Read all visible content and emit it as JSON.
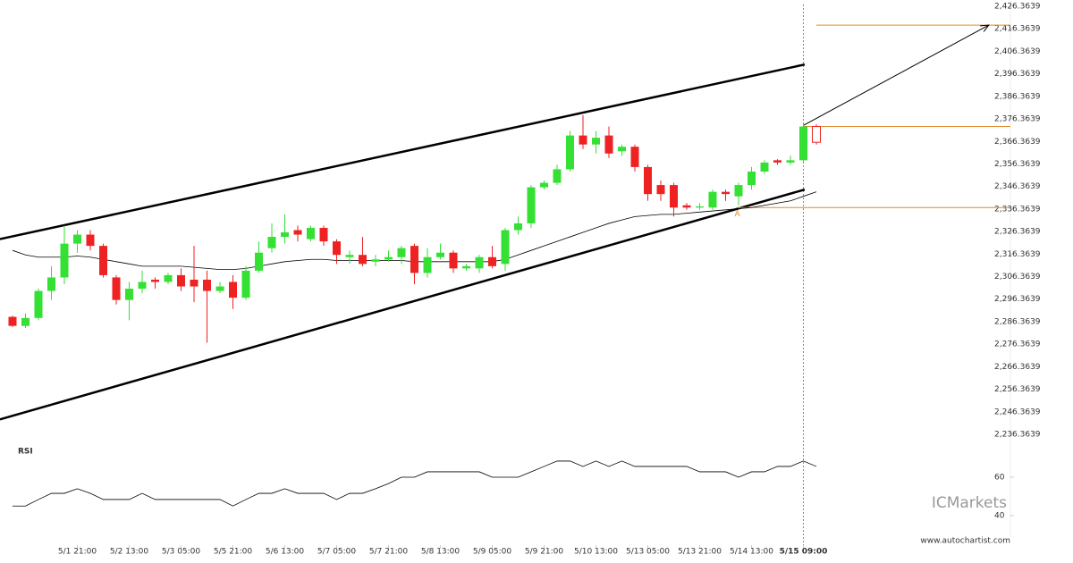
{
  "chart_data": {
    "type": "candlestick",
    "categories": [
      null,
      null,
      null,
      null,
      null,
      "5/1 21:00",
      null,
      null,
      null,
      "5/2 13:00",
      null,
      null,
      null,
      "5/3 05:00",
      null,
      null,
      null,
      "5/5 21:00",
      null,
      null,
      null,
      "5/6 13:00",
      null,
      null,
      null,
      "5/7 05:00",
      null,
      null,
      null,
      "5/7 21:00",
      null,
      null,
      null,
      "5/8 13:00",
      null,
      null,
      null,
      "5/9 05:00",
      null,
      null,
      null,
      "5/9 21:00",
      null,
      null,
      null,
      "5/10 13:00",
      null,
      null,
      null,
      "5/13 05:00",
      null,
      null,
      null,
      "5/13 21:00",
      null,
      null,
      null,
      "5/14 13:00",
      null,
      null,
      null,
      "5/15 09:00",
      null
    ],
    "open": [
      2288.5,
      2284.5,
      2288,
      2300,
      2306,
      2321,
      2325,
      2320,
      2306,
      2296,
      2301,
      2305,
      2304,
      2307,
      2305,
      2305,
      2300,
      2304,
      2297,
      2309,
      2319,
      2324,
      2327,
      2323,
      2328,
      2322,
      2315,
      2316,
      2313,
      2314,
      2315,
      2320,
      2308,
      2315,
      2317,
      2310,
      2310,
      2315,
      2312,
      2327,
      2330,
      2346,
      2348,
      2354,
      2369,
      2365,
      2369,
      2362,
      2364,
      2355,
      2347,
      2347,
      2338,
      2337,
      2337,
      2344,
      2342,
      2347,
      2353,
      2358,
      2357,
      2358,
      2373
    ],
    "high": [
      2289,
      2290,
      2301,
      2311,
      2329,
      2327,
      2327,
      2321,
      2307,
      2304,
      2309,
      2306,
      2308,
      2310,
      2320,
      2309,
      2304,
      2307,
      2311,
      2322,
      2330,
      2334,
      2329,
      2329,
      2329,
      2323,
      2318,
      2324,
      2316,
      2318,
      2320,
      2321,
      2319,
      2321,
      2318,
      2312,
      2316,
      2320,
      2328,
      2333,
      2347,
      2349,
      2356,
      2371,
      2378,
      2371,
      2373,
      2365,
      2365,
      2356,
      2349,
      2348,
      2339,
      2339,
      2345,
      2345,
      2348,
      2355,
      2358,
      2358.5,
      2360,
      2374,
      2374
    ],
    "low": [
      2284,
      2283.5,
      2287,
      2296,
      2303,
      2317,
      2318,
      2306,
      2294,
      2287,
      2299,
      2301,
      2303,
      2300,
      2295,
      2277,
      2299,
      2292,
      2296,
      2308,
      2317,
      2321,
      2322,
      2322,
      2320,
      2312,
      2312,
      2311,
      2311,
      2313,
      2312,
      2303,
      2306,
      2314,
      2308,
      2309,
      2308,
      2310,
      2309,
      2325,
      2328,
      2345,
      2347,
      2353,
      2363,
      2361,
      2359,
      2360,
      2353,
      2340,
      2340,
      2333,
      2336,
      2336,
      2336,
      2340,
      2338,
      2345,
      2352,
      2356,
      2356,
      2357,
      2365
    ],
    "close": [
      2284.5,
      2288,
      2300,
      2306,
      2321,
      2325,
      2320,
      2307,
      2296,
      2301,
      2304,
      2304,
      2307,
      2302,
      2302,
      2300,
      2302,
      2297,
      2309,
      2317,
      2324,
      2326,
      2325,
      2328,
      2322,
      2316,
      2316,
      2312,
      2314,
      2315,
      2319,
      2308,
      2315,
      2317,
      2310,
      2311,
      2315,
      2311,
      2327,
      2330,
      2346,
      2348,
      2354,
      2369,
      2365,
      2368,
      2361,
      2364,
      2355,
      2343,
      2343,
      2337,
      2337,
      2337.5,
      2344,
      2343,
      2347,
      2353,
      2357,
      2357,
      2358,
      2373,
      2366
    ],
    "up_color": "#33e033",
    "down_color": "#ee2222",
    "ylim": [
      2232,
      2426.3639
    ],
    "yticks": [
      {
        "value": 2236.3639,
        "label": "2,236.3639"
      },
      {
        "value": 2246.3639,
        "label": "2,246.3639"
      },
      {
        "value": 2256.3639,
        "label": "2,256.3639"
      },
      {
        "value": 2266.3639,
        "label": "2,266.3639"
      },
      {
        "value": 2276.3639,
        "label": "2,276.3639"
      },
      {
        "value": 2286.3639,
        "label": "2,286.3639"
      },
      {
        "value": 2296.3639,
        "label": "2,296.3639"
      },
      {
        "value": 2306.3639,
        "label": "2,306.3639"
      },
      {
        "value": 2316.3639,
        "label": "2,316.3639"
      },
      {
        "value": 2326.3639,
        "label": "2,326.3639"
      },
      {
        "value": 2336.3639,
        "label": "2,336.3639"
      },
      {
        "value": 2346.3639,
        "label": "2,346.3639"
      },
      {
        "value": 2356.3639,
        "label": "2,356.3639"
      },
      {
        "value": 2366.3639,
        "label": "2,366.3639"
      },
      {
        "value": 2376.3639,
        "label": "2,376.3639"
      },
      {
        "value": 2386.3639,
        "label": "2,386.3639"
      },
      {
        "value": 2396.3639,
        "label": "2,396.3639"
      },
      {
        "value": 2406.3639,
        "label": "2,406.3639"
      },
      {
        "value": 2416.3639,
        "label": "2,416.3639"
      },
      {
        "value": 2426.3639,
        "label": "2,426.3639"
      }
    ],
    "moving_average": {
      "color": "#000000",
      "values": [
        2318,
        2316,
        2315,
        2315,
        2315,
        2315.5,
        2315,
        2314,
        2313,
        2312,
        2311,
        2311,
        2311,
        2311,
        2310.5,
        2310,
        2309.5,
        2309.5,
        2310,
        2311,
        2312,
        2313,
        2313.5,
        2314,
        2314,
        2313.5,
        2313.5,
        2313.5,
        2313.5,
        2313.5,
        2313.5,
        2313,
        2313,
        2313,
        2313,
        2313,
        2313,
        2313,
        2314,
        2316,
        2318,
        2320,
        2322,
        2324,
        2326,
        2328,
        2330,
        2331.5,
        2333,
        2333.5,
        2334,
        2334,
        2334.5,
        2335,
        2335.5,
        2336,
        2336.5,
        2337,
        2338,
        2339,
        2340,
        2342,
        2344
      ]
    },
    "channel_upper": [
      2323,
      2400.5
    ],
    "channel_lower": [
      2243,
      2345
    ],
    "channel_color": "#000000",
    "forecast": [
      2373.5,
      2418
    ],
    "levels": [
      2418,
      2373,
      2337
    ],
    "level_color": "#e08a2a",
    "pattern_label": "A",
    "rsi": {
      "title": "RSI",
      "color": "#000000",
      "ylim": [
        29.3,
        75.8
      ],
      "yticks": [
        40,
        60
      ],
      "values": [
        45,
        45,
        48.4,
        51.6,
        51.6,
        54,
        51.6,
        48.4,
        48.4,
        48.4,
        51.6,
        48.4,
        48.4,
        48.4,
        48.4,
        48.4,
        48.4,
        45,
        48.4,
        51.6,
        51.6,
        54,
        51.6,
        51.6,
        51.6,
        48.4,
        51.6,
        51.6,
        54,
        56.7,
        60,
        60,
        62.8,
        62.8,
        62.8,
        62.8,
        62.8,
        60,
        60,
        60,
        62.8,
        65.6,
        68.4,
        68.4,
        65.6,
        68.4,
        65.6,
        68.4,
        65.6,
        65.6,
        65.6,
        65.6,
        65.6,
        62.8,
        62.8,
        62.8,
        60,
        62.8,
        62.8,
        65.6,
        65.6,
        68.4,
        65.6
      ]
    },
    "brand": "ICMarkets",
    "source": "www.autochartist.com"
  }
}
